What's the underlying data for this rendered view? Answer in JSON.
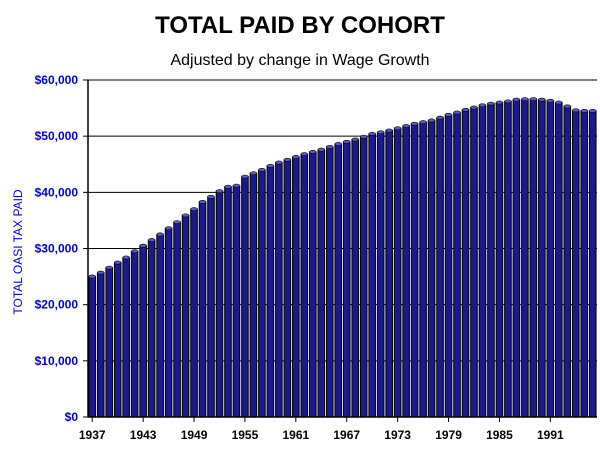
{
  "chart_data": {
    "type": "bar",
    "title": "TOTAL PAID BY COHORT",
    "subtitle": "Adjusted by change in Wage Growth",
    "ylabel": "TOTAL OASI TAX PAID",
    "xlabel": "",
    "ylim": [
      0,
      60000
    ],
    "y_ticks": [
      0,
      10000,
      20000,
      30000,
      40000,
      50000,
      60000
    ],
    "y_tick_labels": [
      "$0",
      "$10,000",
      "$20,000",
      "$30,000",
      "$40,000",
      "$50,000",
      "$60,000"
    ],
    "x_tick_labels": [
      "1937",
      "1943",
      "1949",
      "1955",
      "1961",
      "1967",
      "1973",
      "1979",
      "1985",
      "1991"
    ],
    "grid": true,
    "colors": {
      "bar": "#1a1a8c",
      "axis_text": "#0000cc",
      "gridline": "#000000",
      "title": "#000000"
    },
    "categories": [
      1937,
      1938,
      1939,
      1940,
      1941,
      1942,
      1943,
      1944,
      1945,
      1946,
      1947,
      1948,
      1949,
      1950,
      1951,
      1952,
      1953,
      1954,
      1955,
      1956,
      1957,
      1958,
      1959,
      1960,
      1961,
      1962,
      1963,
      1964,
      1965,
      1966,
      1967,
      1968,
      1969,
      1970,
      1971,
      1972,
      1973,
      1974,
      1975,
      1976,
      1977,
      1978,
      1979,
      1980,
      1981,
      1982,
      1983,
      1984,
      1985,
      1986,
      1987,
      1988,
      1989,
      1990,
      1991,
      1992,
      1993,
      1994,
      1995,
      1996
    ],
    "values": [
      25000,
      25700,
      26600,
      27500,
      28400,
      29500,
      30500,
      31500,
      32500,
      33600,
      34700,
      35900,
      37000,
      38300,
      39200,
      40200,
      41000,
      41200,
      42800,
      43400,
      44000,
      44700,
      45300,
      45800,
      46300,
      46800,
      47200,
      47600,
      48100,
      48600,
      49000,
      49400,
      49900,
      50400,
      50700,
      51000,
      51400,
      51800,
      52200,
      52500,
      52800,
      53300,
      53800,
      54200,
      54700,
      55100,
      55500,
      55800,
      56000,
      56200,
      56500,
      56600,
      56600,
      56500,
      56300,
      56000,
      55300,
      54600,
      54500,
      54500
    ]
  }
}
